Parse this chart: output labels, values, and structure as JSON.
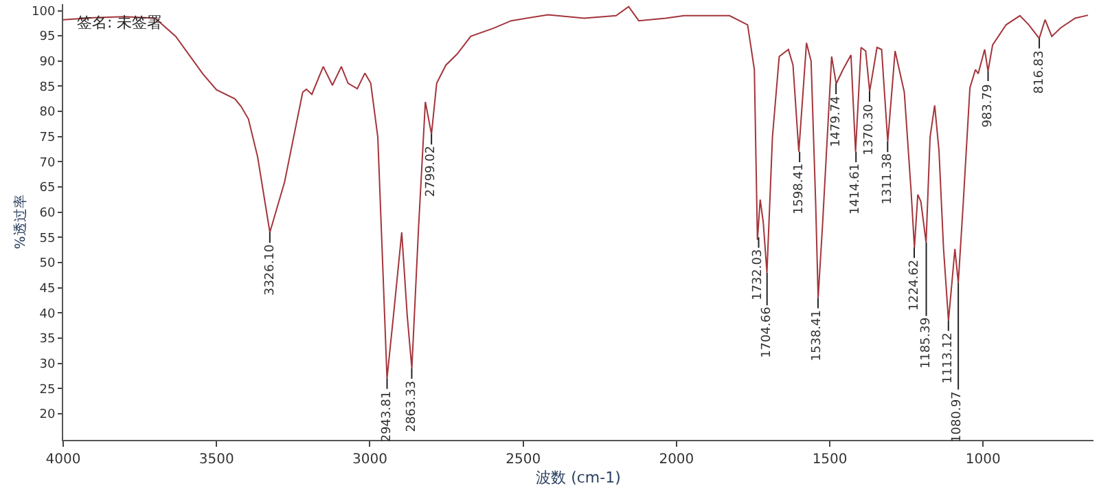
{
  "chart_data": {
    "type": "line",
    "xlabel": "波数 (cm-1)",
    "ylabel": "%透过率",
    "xlim": [
      4000,
      640
    ],
    "ylim": [
      14.8,
      101.3
    ],
    "xticks": [
      4000,
      3500,
      3000,
      2500,
      2000,
      1500,
      1000
    ],
    "yticks": [
      20,
      25,
      30,
      35,
      40,
      45,
      50,
      55,
      60,
      65,
      70,
      75,
      80,
      85,
      90,
      95,
      100
    ],
    "marker": "none",
    "line_style": "solid",
    "x": [
      4000,
      3900,
      3800,
      3700,
      3633,
      3544,
      3500,
      3440,
      3420,
      3396,
      3366,
      3326,
      3278,
      3219,
      3207,
      3189,
      3152,
      3122,
      3093,
      3071,
      3041,
      3016,
      2997,
      2974,
      2960,
      2944,
      2923,
      2896,
      2878,
      2863,
      2841,
      2819,
      2799,
      2782,
      2752,
      2715,
      2671,
      2597,
      2539,
      2419,
      2301,
      2197,
      2156,
      2123,
      2035,
      1975,
      1827,
      1768,
      1746,
      1736,
      1727,
      1717,
      1705,
      1687,
      1665,
      1635,
      1620,
      1601,
      1576,
      1561,
      1546,
      1538,
      1524,
      1494,
      1479,
      1457,
      1431,
      1416,
      1398,
      1383,
      1370,
      1346,
      1331,
      1311,
      1287,
      1257,
      1235,
      1224,
      1213,
      1203,
      1186,
      1173,
      1158,
      1144,
      1129,
      1113,
      1105,
      1092,
      1081,
      1065,
      1043,
      1025,
      1016,
      995,
      984,
      969,
      925,
      880,
      851,
      817,
      798,
      776,
      747,
      700,
      658
    ],
    "series": [
      {
        "color": "#a3343a",
        "values": [
          98.2,
          98.6,
          98.8,
          98.5,
          94.9,
          87.4,
          84.3,
          82.5,
          81,
          78.5,
          71,
          56,
          66,
          83.8,
          84.4,
          83.4,
          88.9,
          85.2,
          88.9,
          85.6,
          84.5,
          87.6,
          85.6,
          74.9,
          52.7,
          27,
          39.4,
          56,
          39.4,
          29,
          57.1,
          81.9,
          75.5,
          85.6,
          89.2,
          91.4,
          94.9,
          96.5,
          98,
          99.2,
          98.5,
          99,
          100.8,
          98,
          98.5,
          99,
          99,
          97.2,
          88.3,
          54.5,
          62.5,
          58,
          48,
          74.9,
          90.9,
          92.3,
          89.2,
          72,
          93.6,
          90,
          61.6,
          43,
          57.1,
          90.9,
          85.5,
          88.3,
          91.2,
          72,
          92.7,
          92,
          84,
          92.7,
          92.3,
          74,
          92,
          83.8,
          64.3,
          53,
          63.5,
          62.1,
          54,
          74.9,
          81.2,
          72.3,
          52.7,
          38.5,
          43.8,
          52.7,
          46,
          61.6,
          84.7,
          88.3,
          87.5,
          92.3,
          88,
          93.2,
          97.2,
          99,
          97.2,
          94.5,
          98.2,
          94.9,
          96.6,
          98.5,
          99.1
        ]
      }
    ],
    "annotations": [
      "签名: 未签署",
      {
        "text": "3326.10",
        "x": 3326.1,
        "y": 56
      },
      {
        "text": "2943.81",
        "x": 2943.81,
        "y": 27
      },
      {
        "text": "2863.33",
        "x": 2863.33,
        "y": 29
      },
      {
        "text": "2799.02",
        "x": 2799.02,
        "y": 75.5
      },
      {
        "text": "1732.03",
        "x": 1732.03,
        "y": 55
      },
      {
        "text": "1704.66",
        "x": 1704.66,
        "y": 48
      },
      {
        "text": "1598.41",
        "x": 1598.41,
        "y": 72
      },
      {
        "text": "1538.41",
        "x": 1538.41,
        "y": 43
      },
      {
        "text": "1479.74",
        "x": 1479.74,
        "y": 85.5
      },
      {
        "text": "1414.61",
        "x": 1414.61,
        "y": 72
      },
      {
        "text": "1370.30",
        "x": 1370.3,
        "y": 84
      },
      {
        "text": "1311.38",
        "x": 1311.38,
        "y": 74
      },
      {
        "text": "1224.62",
        "x": 1224.62,
        "y": 53
      },
      {
        "text": "1185.39",
        "x": 1185.39,
        "y": 54
      },
      {
        "text": "1113.12",
        "x": 1113.12,
        "y": 38.5
      },
      {
        "text": "1080.97",
        "x": 1080.97,
        "y": 46
      },
      {
        "text": "983.79",
        "x": 983.79,
        "y": 88
      },
      {
        "text": "816.83",
        "x": 816.83,
        "y": 94.5
      }
    ]
  }
}
